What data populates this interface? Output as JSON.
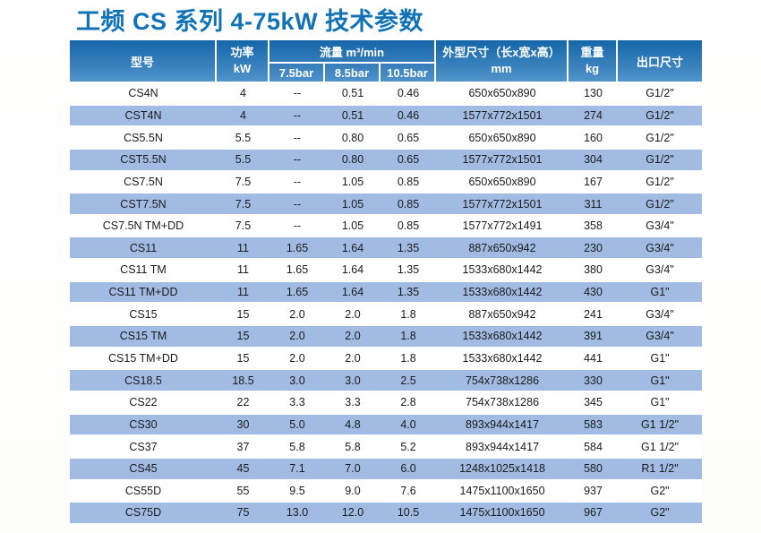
{
  "page": {
    "title": "工频 CS 系列 4-75kW 技术参数"
  },
  "colors": {
    "title_blue": "#1173b5",
    "header_gradient_top": "#1566a9",
    "header_gradient_mid": "#347cba",
    "header_gradient_bottom": "#5093cb",
    "row_alt_blue": "#a1bbe2",
    "row_white": "#ffffff",
    "cell_text": "#1b1b1b"
  },
  "table": {
    "header": {
      "model": "型号",
      "power_label": "功率",
      "power_unit": "kW",
      "flow_group": "流量 m³/min",
      "flow_subcols": [
        "7.5bar",
        "8.5bar",
        "10.5bar"
      ],
      "dimensions_label": "外型尺寸（长x宽x高）",
      "dimensions_unit": "mm",
      "weight_label": "重量",
      "weight_unit": "kg",
      "outlet": "出口尺寸"
    },
    "rows": [
      {
        "model": "CS4N",
        "power": "4",
        "flow_7_5": "--",
        "flow_8_5": "0.51",
        "flow_10_5": "0.46",
        "dimensions": "650x650x890",
        "weight": "130",
        "outlet": "G1/2\""
      },
      {
        "model": "CST4N",
        "power": "4",
        "flow_7_5": "--",
        "flow_8_5": "0.51",
        "flow_10_5": "0.46",
        "dimensions": "1577x772x1501",
        "weight": "274",
        "outlet": "G1/2\""
      },
      {
        "model": "CS5.5N",
        "power": "5.5",
        "flow_7_5": "--",
        "flow_8_5": "0.80",
        "flow_10_5": "0.65",
        "dimensions": "650x650x890",
        "weight": "160",
        "outlet": "G1/2\""
      },
      {
        "model": "CST5.5N",
        "power": "5.5",
        "flow_7_5": "--",
        "flow_8_5": "0.80",
        "flow_10_5": "0.65",
        "dimensions": "1577x772x1501",
        "weight": "304",
        "outlet": "G1/2\""
      },
      {
        "model": "CS7.5N",
        "power": "7.5",
        "flow_7_5": "--",
        "flow_8_5": "1.05",
        "flow_10_5": "0.85",
        "dimensions": "650x650x890",
        "weight": "167",
        "outlet": "G1/2\""
      },
      {
        "model": "CST7.5N",
        "power": "7.5",
        "flow_7_5": "--",
        "flow_8_5": "1.05",
        "flow_10_5": "0.85",
        "dimensions": "1577x772x1501",
        "weight": "311",
        "outlet": "G1/2\""
      },
      {
        "model": "CS7.5N TM+DD",
        "power": "7.5",
        "flow_7_5": "--",
        "flow_8_5": "1.05",
        "flow_10_5": "0.85",
        "dimensions": "1577x772x1491",
        "weight": "358",
        "outlet": "G3/4\""
      },
      {
        "model": "CS11",
        "power": "11",
        "flow_7_5": "1.65",
        "flow_8_5": "1.64",
        "flow_10_5": "1.35",
        "dimensions": "887x650x942",
        "weight": "230",
        "outlet": "G3/4\""
      },
      {
        "model": "CS11 TM",
        "power": "11",
        "flow_7_5": "1.65",
        "flow_8_5": "1.64",
        "flow_10_5": "1.35",
        "dimensions": "1533x680x1442",
        "weight": "380",
        "outlet": "G3/4\""
      },
      {
        "model": "CS11 TM+DD",
        "power": "11",
        "flow_7_5": "1.65",
        "flow_8_5": "1.64",
        "flow_10_5": "1.35",
        "dimensions": "1533x680x1442",
        "weight": "430",
        "outlet": "G1\""
      },
      {
        "model": "CS15",
        "power": "15",
        "flow_7_5": "2.0",
        "flow_8_5": "2.0",
        "flow_10_5": "1.8",
        "dimensions": "887x650x942",
        "weight": "241",
        "outlet": "G3/4\""
      },
      {
        "model": "CS15 TM",
        "power": "15",
        "flow_7_5": "2.0",
        "flow_8_5": "2.0",
        "flow_10_5": "1.8",
        "dimensions": "1533x680x1442",
        "weight": "391",
        "outlet": "G3/4\""
      },
      {
        "model": "CS15 TM+DD",
        "power": "15",
        "flow_7_5": "2.0",
        "flow_8_5": "2.0",
        "flow_10_5": "1.8",
        "dimensions": "1533x680x1442",
        "weight": "441",
        "outlet": "G1\""
      },
      {
        "model": "CS18.5",
        "power": "18.5",
        "flow_7_5": "3.0",
        "flow_8_5": "3.0",
        "flow_10_5": "2.5",
        "dimensions": "754x738x1286",
        "weight": "330",
        "outlet": "G1\""
      },
      {
        "model": "CS22",
        "power": "22",
        "flow_7_5": "3.3",
        "flow_8_5": "3.3",
        "flow_10_5": "2.8",
        "dimensions": "754x738x1286",
        "weight": "345",
        "outlet": "G1\""
      },
      {
        "model": "CS30",
        "power": "30",
        "flow_7_5": "5.0",
        "flow_8_5": "4.8",
        "flow_10_5": "4.0",
        "dimensions": "893x944x1417",
        "weight": "583",
        "outlet": "G1 1/2\""
      },
      {
        "model": "CS37",
        "power": "37",
        "flow_7_5": "5.8",
        "flow_8_5": "5.8",
        "flow_10_5": "5.2",
        "dimensions": "893x944x1417",
        "weight": "584",
        "outlet": "G1 1/2\""
      },
      {
        "model": "CS45",
        "power": "45",
        "flow_7_5": "7.1",
        "flow_8_5": "7.0",
        "flow_10_5": "6.0",
        "dimensions": "1248x1025x1418",
        "weight": "580",
        "outlet": "R1 1/2\""
      },
      {
        "model": "CS55D",
        "power": "55",
        "flow_7_5": "9.5",
        "flow_8_5": "9.0",
        "flow_10_5": "7.6",
        "dimensions": "1475x1100x1650",
        "weight": "937",
        "outlet": "G2\""
      },
      {
        "model": "CS75D",
        "power": "75",
        "flow_7_5": "13.0",
        "flow_8_5": "12.0",
        "flow_10_5": "10.5",
        "dimensions": "1475x1100x1650",
        "weight": "967",
        "outlet": "G2\""
      }
    ]
  }
}
